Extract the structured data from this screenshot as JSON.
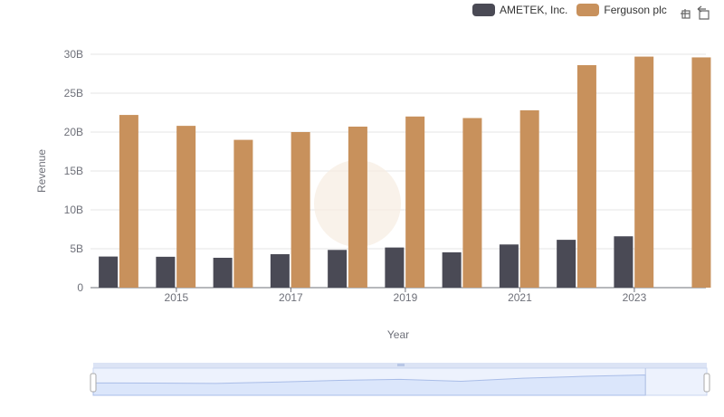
{
  "legend": {
    "series_a": "AMETEK, Inc.",
    "series_b": "Ferguson plc"
  },
  "toolbox": {
    "icons": [
      "zoom-icon",
      "restore-icon"
    ]
  },
  "colors": {
    "ametek": "#4a4a55",
    "ferguson": "#c8915c",
    "grid": "#e6e6e6",
    "zoom_fill": "#dbe6fb",
    "zoom_border": "#c9d5f0"
  },
  "chart_data": {
    "type": "bar",
    "xlabel": "Year",
    "ylabel": "Revenue",
    "ylim": [
      0,
      30000000000
    ],
    "yticks": [
      "0",
      "5B",
      "10B",
      "15B",
      "20B",
      "25B",
      "30B"
    ],
    "categories": [
      "2014",
      "2015",
      "2016",
      "2017",
      "2018",
      "2019",
      "2020",
      "2021",
      "2022",
      "2023",
      "2024"
    ],
    "x_tick_labels": [
      "2015",
      "2017",
      "2019",
      "2021",
      "2023"
    ],
    "series": [
      {
        "name": "AMETEK, Inc.",
        "values": [
          4000000000,
          3970000000,
          3840000000,
          4300000000,
          4850000000,
          5160000000,
          4540000000,
          5550000000,
          6150000000,
          6600000000,
          null
        ]
      },
      {
        "name": "Ferguson plc",
        "values": [
          22200000000,
          20800000000,
          19000000000,
          20000000000,
          20700000000,
          22000000000,
          21800000000,
          22800000000,
          28600000000,
          29700000000,
          29600000000
        ]
      }
    ],
    "grid": true,
    "legend_position": "top-right",
    "datazoom": true
  }
}
